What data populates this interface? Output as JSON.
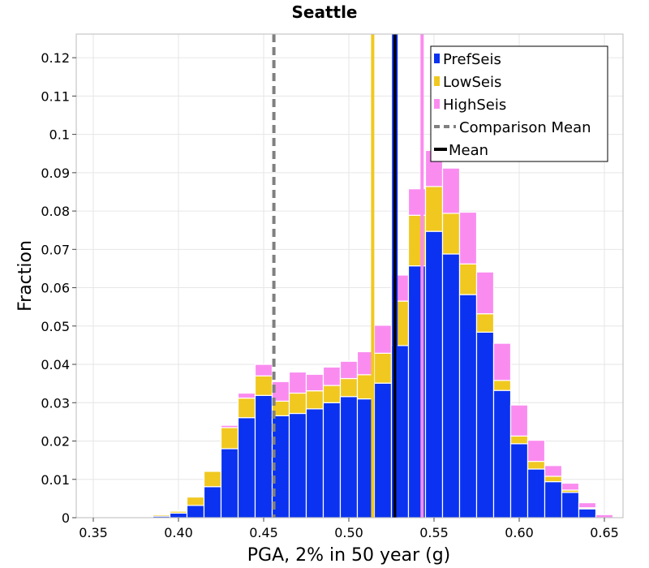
{
  "chart_data": {
    "type": "bar",
    "stacked": true,
    "title": "Seattle",
    "xlabel": "PGA, 2% in 50 year (g)",
    "ylabel": "Fraction",
    "xlim": [
      0.34,
      0.66
    ],
    "ylim": [
      0,
      0.126
    ],
    "grid": true,
    "legend_position": "top-right",
    "bin_width": 0.01,
    "x_ticks": [
      "0.35",
      "0.40",
      "0.45",
      "0.50",
      "0.55",
      "0.60",
      "0.65"
    ],
    "x_tick_values": [
      0.35,
      0.4,
      0.45,
      0.5,
      0.55,
      0.6,
      0.65
    ],
    "y_ticks": [
      "0",
      "0.01",
      "0.02",
      "0.03",
      "0.04",
      "0.05",
      "0.06",
      "0.07",
      "0.08",
      "0.09",
      "0.1",
      "0.11",
      "0.12"
    ],
    "y_tick_values": [
      0,
      0.01,
      0.02,
      0.03,
      0.04,
      0.05,
      0.06,
      0.07,
      0.08,
      0.09,
      0.1,
      0.11,
      0.12
    ],
    "x": [
      0.37,
      0.38,
      0.39,
      0.4,
      0.41,
      0.42,
      0.43,
      0.44,
      0.45,
      0.46,
      0.47,
      0.48,
      0.49,
      0.5,
      0.51,
      0.52,
      0.53,
      0.54,
      0.55,
      0.56,
      0.57,
      0.58,
      0.59,
      0.6,
      0.61,
      0.62,
      0.63,
      0.64
    ],
    "series": [
      {
        "name": "PrefSeis",
        "color": "#0a32f0",
        "values": [
          0.0001,
          0.0002,
          0.0004,
          0.0012,
          0.0032,
          0.0081,
          0.018,
          0.0261,
          0.0319,
          0.0266,
          0.0272,
          0.0284,
          0.03,
          0.0316,
          0.031,
          0.0351,
          0.0449,
          0.0657,
          0.0747,
          0.0688,
          0.0582,
          0.0484,
          0.0332,
          0.0193,
          0.0127,
          0.0094,
          0.0066,
          0.0023
        ]
      },
      {
        "name": "LowSeis",
        "color": "#f0c820",
        "values": [
          0.0001,
          0.0001,
          0.0004,
          0.0005,
          0.0022,
          0.004,
          0.0055,
          0.0051,
          0.0051,
          0.0038,
          0.0053,
          0.0047,
          0.0045,
          0.0047,
          0.0063,
          0.0078,
          0.0116,
          0.0132,
          0.0117,
          0.0106,
          0.008,
          0.0048,
          0.0026,
          0.002,
          0.002,
          0.0014,
          0.0006,
          0.0003
        ]
      },
      {
        "name": "HighSeis",
        "color": "#fa8cf0",
        "values": [
          0.0001,
          0.0001,
          0.0002,
          0.0002,
          0.0002,
          0.0001,
          0.0006,
          0.0013,
          0.003,
          0.0051,
          0.0055,
          0.0043,
          0.0048,
          0.0045,
          0.006,
          0.0073,
          0.0068,
          0.0069,
          0.0094,
          0.0118,
          0.0135,
          0.0109,
          0.0097,
          0.0081,
          0.0055,
          0.0028,
          0.0018,
          0.0013
        ]
      }
    ],
    "extra_bar": {
      "x": 0.65,
      "values": [
        0,
        0,
        0.0008
      ]
    },
    "vertical_lines": [
      {
        "name": "Comparison Mean",
        "x": 0.456,
        "color": "#808080",
        "style": "dashed",
        "in_legend": true
      },
      {
        "name": "Mean",
        "x": 0.527,
        "color": "#000000",
        "style": "solid",
        "in_legend": true,
        "highlight": "#0a32f0"
      },
      {
        "name": "",
        "x": 0.514,
        "color": "#f0c820",
        "style": "solid",
        "in_legend": false
      },
      {
        "name": "",
        "x": 0.543,
        "color": "#fa8cf0",
        "style": "solid",
        "in_legend": false
      }
    ],
    "legend": [
      "PrefSeis",
      "LowSeis",
      "HighSeis",
      "Comparison Mean",
      "Mean"
    ]
  }
}
